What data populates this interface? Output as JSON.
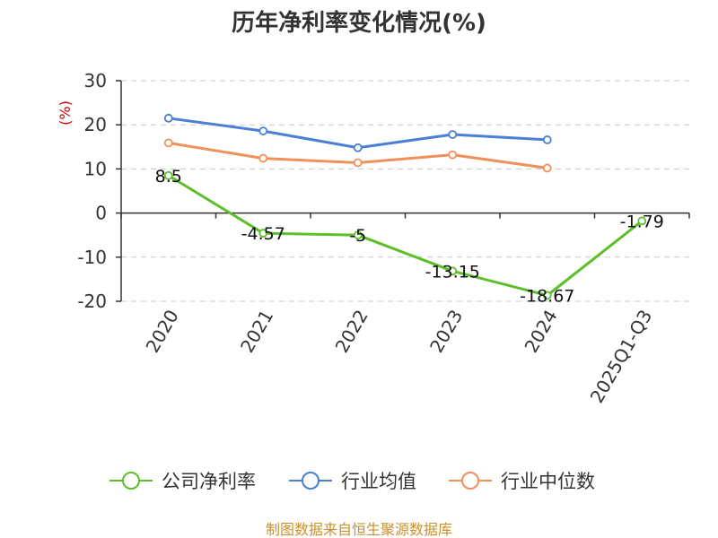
{
  "chart_data": {
    "type": "line",
    "title": "历年净利率变化情况(%)",
    "ylabel": "(%)",
    "categories": [
      "2020",
      "2021",
      "2022",
      "2023",
      "2024",
      "2025Q1-Q3"
    ],
    "ylim": [
      -20,
      30
    ],
    "yticks": [
      "30",
      "20",
      "10",
      "0",
      "-10",
      "-20"
    ],
    "ytick_values": [
      30,
      20,
      10,
      0,
      -10,
      -20
    ],
    "grid": true,
    "legend_position": "bottom",
    "series": [
      {
        "name": "公司净利率",
        "color": "#5cbf2a",
        "values": [
          8.5,
          -4.57,
          -5,
          -13.15,
          -18.67,
          -1.79
        ],
        "labels": [
          "8.5",
          "-4.57",
          "-5",
          "-13.15",
          "-18.67",
          "-1.79"
        ]
      },
      {
        "name": "行业均值",
        "color": "#4a7fd6",
        "values": [
          21.5,
          18.6,
          14.8,
          17.8,
          16.6,
          null
        ]
      },
      {
        "name": "行业中位数",
        "color": "#f0905a",
        "values": [
          15.9,
          12.4,
          11.4,
          13.2,
          10.2,
          null
        ]
      }
    ]
  },
  "footer": "制图数据来自恒生聚源数据库"
}
